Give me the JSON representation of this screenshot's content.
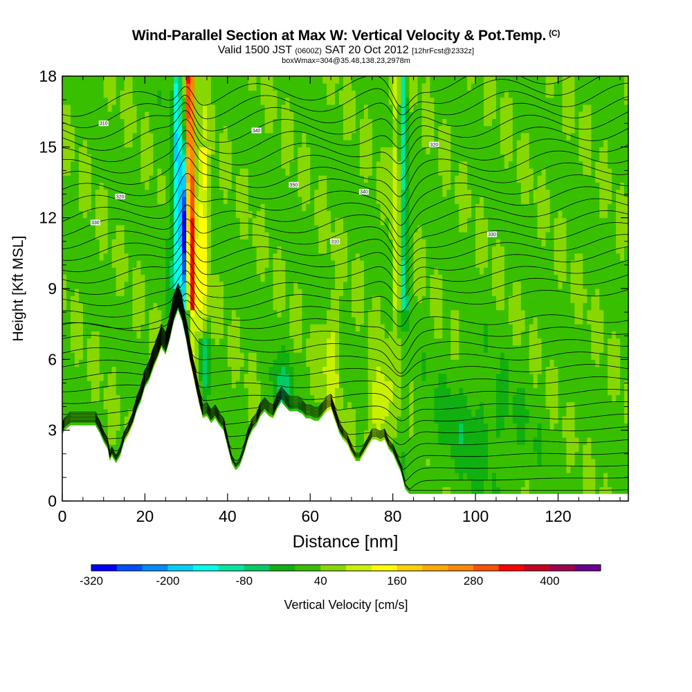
{
  "chart_data": {
    "type": "heatmap",
    "title": "Wind-Parallel Section at Max W: Vertical Velocity & Pot.Temp.",
    "title_mark": "(C)",
    "subtitle": {
      "pre": "Valid 1500 JST",
      "zone": "(0600Z)",
      "mid": "SAT 20 Oct 2012",
      "fcst": "[12hrFcst@2332z]"
    },
    "subtitle2": "boxWmax=304@35.48,138.23,2978m",
    "xlabel": "Distance [nm]",
    "ylabel": "Height [Kft MSL]",
    "xlim": [
      0,
      137
    ],
    "ylim": [
      0,
      18
    ],
    "xticks": [
      "0",
      "20",
      "40",
      "60",
      "80",
      "100",
      "120"
    ],
    "yticks": [
      "0",
      "3",
      "6",
      "9",
      "12",
      "15",
      "18"
    ],
    "colorbar": {
      "label": "Vertical Velocity [cm/s]",
      "min": -320,
      "step": 40,
      "colors": [
        "#0000ff",
        "#0050ff",
        "#008cff",
        "#00d0ff",
        "#00ffe8",
        "#00e8a0",
        "#00cc66",
        "#10b010",
        "#38c000",
        "#88d800",
        "#c8f000",
        "#ffff00",
        "#ffd000",
        "#ffa800",
        "#ff8800",
        "#ff5000",
        "#ff0000",
        "#c80020",
        "#a00050",
        "#6a0090"
      ],
      "tick_labels": [
        "-320",
        "-200",
        "-80",
        "40",
        "160",
        "280",
        "400"
      ]
    },
    "terrain_kft": [
      [
        0,
        2.8
      ],
      [
        0.5,
        3.0
      ],
      [
        2,
        3.2
      ],
      [
        8,
        3.2
      ],
      [
        9,
        2.9
      ],
      [
        10,
        2.5
      ],
      [
        11,
        2.2
      ],
      [
        11.5,
        1.7
      ],
      [
        12,
        1.9
      ],
      [
        13,
        1.6
      ],
      [
        14,
        1.9
      ],
      [
        15,
        2.5
      ],
      [
        16,
        2.8
      ],
      [
        17,
        3.2
      ],
      [
        18,
        3.8
      ],
      [
        19,
        4.2
      ],
      [
        20,
        4.8
      ],
      [
        21,
        5.1
      ],
      [
        22,
        5.6
      ],
      [
        23,
        6.0
      ],
      [
        24,
        6.5
      ],
      [
        25,
        6.2
      ],
      [
        26,
        6.8
      ],
      [
        27,
        7.6
      ],
      [
        28,
        8.1
      ],
      [
        29,
        7.6
      ],
      [
        30,
        6.8
      ],
      [
        31,
        5.8
      ],
      [
        32,
        5.0
      ],
      [
        33,
        4.2
      ],
      [
        34,
        3.5
      ],
      [
        35,
        3.6
      ],
      [
        36,
        3.3
      ],
      [
        37,
        3.5
      ],
      [
        38,
        3.2
      ],
      [
        39,
        3.0
      ],
      [
        40,
        2.3
      ],
      [
        41,
        1.6
      ],
      [
        42,
        1.3
      ],
      [
        43,
        1.5
      ],
      [
        44,
        2.0
      ],
      [
        45,
        2.6
      ],
      [
        46,
        3.0
      ],
      [
        47,
        3.2
      ],
      [
        48,
        3.6
      ],
      [
        49,
        3.8
      ],
      [
        50,
        3.6
      ],
      [
        51,
        3.5
      ],
      [
        52,
        3.9
      ],
      [
        53,
        4.2
      ],
      [
        54,
        4.0
      ],
      [
        55,
        3.8
      ],
      [
        56,
        3.8
      ],
      [
        57,
        3.8
      ],
      [
        58,
        3.7
      ],
      [
        59,
        3.5
      ],
      [
        60,
        3.5
      ],
      [
        61,
        3.4
      ],
      [
        62,
        3.4
      ],
      [
        63,
        3.6
      ],
      [
        64,
        3.8
      ],
      [
        65,
        3.9
      ],
      [
        66,
        3.4
      ],
      [
        67,
        2.9
      ],
      [
        68,
        2.6
      ],
      [
        69,
        2.4
      ],
      [
        70,
        2.0
      ],
      [
        71,
        1.7
      ],
      [
        72,
        1.7
      ],
      [
        73,
        2.0
      ],
      [
        74,
        2.3
      ],
      [
        75,
        2.6
      ],
      [
        76,
        2.6
      ],
      [
        77,
        2.5
      ],
      [
        78,
        2.6
      ],
      [
        79,
        2.2
      ],
      [
        80,
        2.0
      ],
      [
        81,
        1.6
      ],
      [
        82,
        1.2
      ],
      [
        83,
        0.5
      ],
      [
        84,
        0.3
      ],
      [
        137,
        0.3
      ]
    ],
    "theta_contour_labels": [
      "310",
      "320",
      "330",
      "340",
      "350"
    ]
  }
}
